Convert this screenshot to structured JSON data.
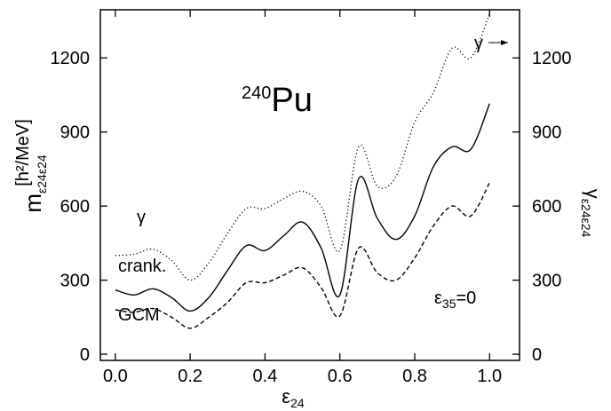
{
  "chart_data": {
    "type": "line",
    "title": "",
    "x": [
      0.0,
      0.05,
      0.1,
      0.15,
      0.2,
      0.25,
      0.3,
      0.35,
      0.4,
      0.45,
      0.5,
      0.55,
      0.6,
      0.65,
      0.7,
      0.75,
      0.8,
      0.85,
      0.9,
      0.95,
      1.0
    ],
    "xlim": [
      -0.04,
      1.08
    ],
    "ylim": [
      -25,
      1395
    ],
    "x_ticks": [
      0.0,
      0.2,
      0.4,
      0.6,
      0.8,
      1.0
    ],
    "y_ticks": [
      0,
      300,
      600,
      900,
      1200
    ],
    "x_tick_labels": [
      "0.0",
      "0.2",
      "0.4",
      "0.6",
      "0.8",
      "1.0"
    ],
    "y_tick_labels": [
      "0",
      "300",
      "600",
      "900",
      "1200"
    ],
    "right_tick_labels": [
      "0",
      "300",
      "600",
      "900",
      "1200"
    ],
    "grid": false,
    "xlabel": {
      "main": "ε",
      "sub": "24"
    },
    "ylabel_left": {
      "main": "m",
      "sub": "ε24ε24",
      "unit": "[h²/MeV]"
    },
    "ylabel_right": {
      "main": "γ",
      "sub": "ε24ε24"
    },
    "series": [
      {
        "name": "γ",
        "style": "dotted",
        "values": [
          400,
          405,
          425,
          380,
          300,
          370,
          490,
          590,
          590,
          630,
          660,
          600,
          420,
          840,
          680,
          720,
          940,
          1060,
          1240,
          1200,
          1380
        ]
      },
      {
        "name": "crank.",
        "style": "solid",
        "values": [
          260,
          240,
          265,
          230,
          175,
          230,
          340,
          440,
          420,
          480,
          535,
          430,
          240,
          710,
          550,
          465,
          560,
          760,
          840,
          830,
          1015
        ]
      },
      {
        "name": "GCM",
        "style": "dashed",
        "values": [
          180,
          170,
          185,
          150,
          105,
          150,
          210,
          290,
          290,
          320,
          350,
          270,
          155,
          430,
          330,
          300,
          390,
          520,
          600,
          560,
          695
        ]
      }
    ],
    "annotations": {
      "nucleus_mass": "240",
      "nucleus_symbol": "Pu",
      "constraint_main": "ε",
      "constraint_sub": "35",
      "constraint_value": "=0",
      "gamma_label": "γ",
      "crank_label": "crank.",
      "gcm_label": "GCM",
      "gamma_arrow_label": "γ"
    }
  }
}
